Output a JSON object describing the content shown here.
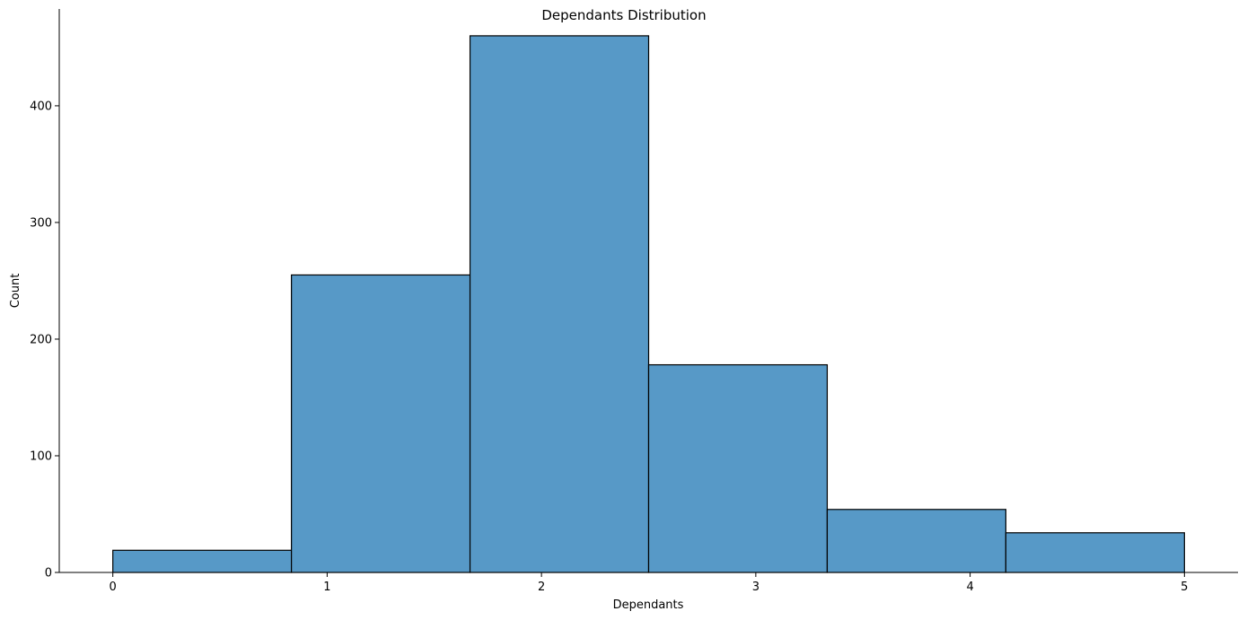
{
  "chart_data": {
    "type": "bar",
    "subtype": "histogram",
    "title": "Dependants Distribution",
    "xlabel": "Dependants",
    "ylabel": "Count",
    "bins": [
      {
        "x0": 0.0,
        "x1": 0.8333,
        "count": 19
      },
      {
        "x0": 0.8333,
        "x1": 1.6667,
        "count": 255
      },
      {
        "x0": 1.6667,
        "x1": 2.5,
        "count": 460
      },
      {
        "x0": 2.5,
        "x1": 3.3333,
        "count": 178
      },
      {
        "x0": 3.3333,
        "x1": 4.1667,
        "count": 54
      },
      {
        "x0": 4.1667,
        "x1": 5.0,
        "count": 34
      }
    ],
    "xlim": [
      -0.25,
      5.25
    ],
    "ylim": [
      0,
      483
    ],
    "xticks": [
      0,
      1,
      2,
      3,
      4,
      5
    ],
    "yticks": [
      0,
      100,
      200,
      300,
      400
    ],
    "grid": false,
    "bar_color": "#5799c7",
    "edge_color": "#000000"
  }
}
